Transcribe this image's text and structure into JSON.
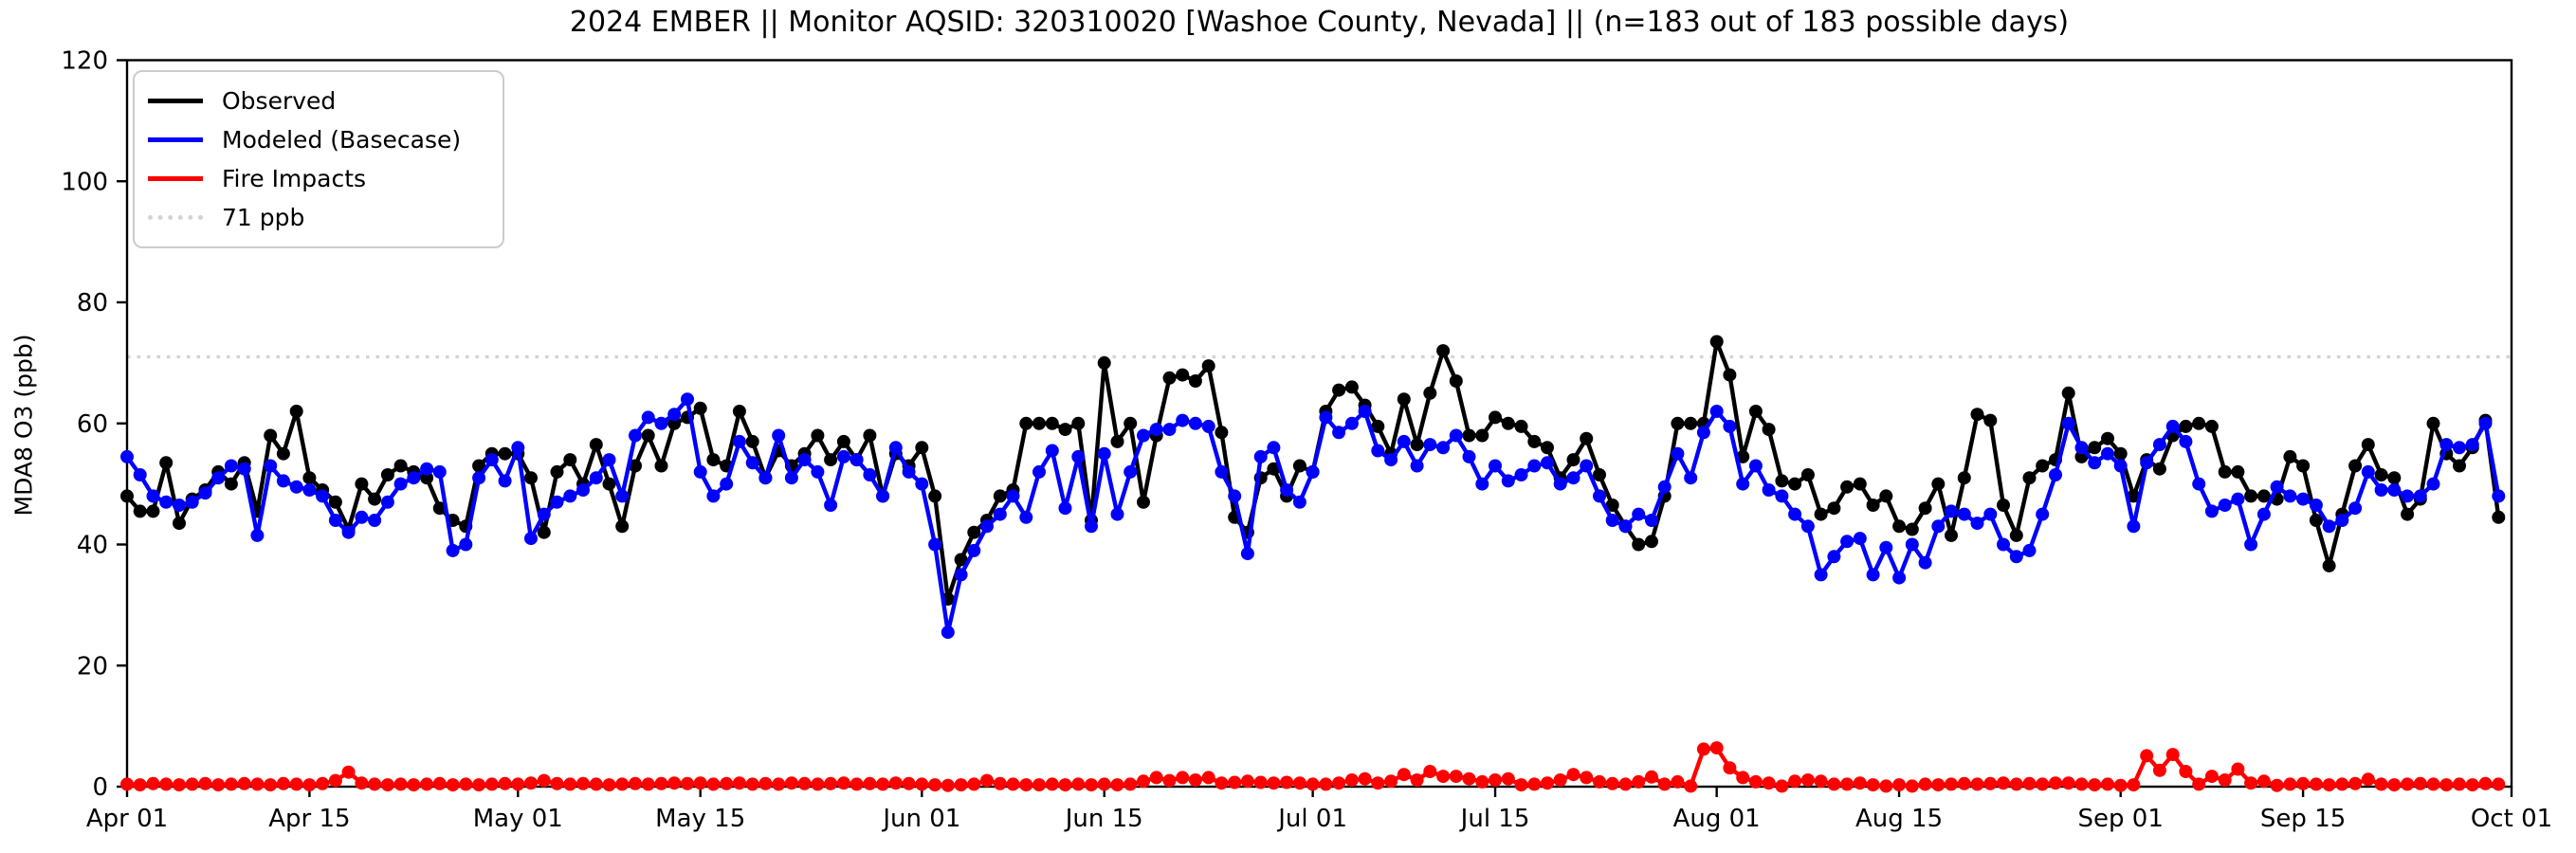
{
  "chart_data": {
    "type": "line",
    "title": "2024 EMBER || Monitor AQSID: 320310020 [Washoe County, Nevada] || (n=183 out of 183 possible days)",
    "ylabel": "MDA8 O3 (ppb)",
    "ylim": [
      0,
      120
    ],
    "yticks": [
      0,
      20,
      40,
      60,
      80,
      100,
      120
    ],
    "n_days": 183,
    "x_range_labels": [
      "Apr 01",
      "Oct 01"
    ],
    "xtick_labels": [
      "Apr 01",
      "Apr 15",
      "May 01",
      "May 15",
      "Jun 01",
      "Jun 15",
      "Jul 01",
      "Jul 15",
      "Aug 01",
      "Aug 15",
      "Sep 01",
      "Sep 15",
      "Oct 01"
    ],
    "xtick_days": [
      0,
      14,
      30,
      44,
      61,
      75,
      91,
      105,
      122,
      136,
      153,
      167,
      183
    ],
    "grid": false,
    "legend_position": "upper left",
    "threshold": {
      "value": 71,
      "label": "71 ppb",
      "color": "#d3d3d3"
    },
    "series": [
      {
        "name": "Observed",
        "color": "#000000",
        "values": [
          48,
          45.5,
          45.5,
          53.5,
          43.5,
          47.5,
          49,
          52,
          50,
          53.5,
          45.5,
          58,
          55,
          62,
          51,
          49,
          47,
          42.5,
          50,
          47.5,
          51.5,
          53,
          52,
          51,
          46,
          44,
          43,
          53,
          55,
          55,
          55,
          51,
          42,
          52,
          54,
          50,
          56.5,
          50,
          43,
          53,
          58,
          53,
          60,
          61,
          62.5,
          54,
          53,
          62,
          57,
          51,
          55.5,
          53,
          55,
          58,
          54,
          57,
          54,
          58,
          48,
          55,
          53,
          56,
          48,
          31,
          37.5,
          42,
          44,
          48,
          49,
          60,
          60,
          60,
          59,
          60,
          44,
          70,
          57,
          60,
          47,
          58,
          67.5,
          68,
          67,
          69.5,
          58.5,
          44.5,
          42,
          51,
          52.5,
          48,
          53,
          52,
          62,
          65.5,
          66,
          63,
          59.5,
          55,
          64,
          56.5,
          65,
          72,
          67,
          58,
          58,
          61,
          60,
          59.5,
          57,
          56,
          51,
          54,
          57.5,
          51.5,
          46.5,
          43,
          40,
          40.5,
          48,
          60,
          60,
          60,
          73.5,
          68,
          54.5,
          62,
          59,
          50.5,
          50,
          51.5,
          45,
          46,
          49.5,
          50,
          46.5,
          48,
          43,
          42.5,
          46,
          50,
          41.5,
          51,
          61.5,
          60.5,
          46.5,
          41.5,
          51,
          53,
          54,
          65,
          54.5,
          56,
          57.5,
          55,
          48,
          54,
          52.5,
          58,
          59.5,
          60,
          59.5,
          52,
          52,
          48,
          48,
          47.5,
          54.5,
          53,
          44,
          36.5,
          45,
          53,
          56.5,
          51.5,
          51,
          45,
          47.5,
          60,
          55,
          53,
          56,
          60.5,
          44.5
        ]
      },
      {
        "name": "Modeled (Basecase)",
        "color": "#0000ff",
        "values": [
          54.5,
          51.5,
          48,
          47,
          46.5,
          47,
          48.5,
          51,
          53,
          52.5,
          41.5,
          53,
          50.5,
          49.5,
          49,
          48,
          44,
          42,
          44.5,
          44,
          47,
          50,
          51,
          52.5,
          52,
          39,
          40,
          51,
          54,
          50.5,
          56,
          41,
          45,
          47,
          48,
          49,
          51,
          54,
          48,
          58,
          61,
          60,
          61.5,
          64,
          52,
          48,
          50,
          57,
          53.5,
          51,
          58,
          51,
          54,
          52,
          46.5,
          54.5,
          54,
          51.5,
          48,
          56,
          52,
          50,
          40,
          25.5,
          35,
          39,
          43,
          45,
          48,
          44.5,
          52,
          55.5,
          46,
          54.5,
          43,
          55,
          45,
          52,
          58,
          59,
          59,
          60.5,
          60,
          59.5,
          52,
          48,
          38.5,
          54.5,
          56,
          49,
          47,
          52,
          61,
          58.5,
          60,
          62,
          55.5,
          54,
          57,
          53,
          56.5,
          56,
          58,
          54.5,
          50,
          53,
          50.5,
          51.5,
          53,
          53.5,
          50,
          51,
          53,
          48,
          44,
          43,
          45,
          44,
          49.5,
          55,
          51,
          58.5,
          62,
          59.5,
          50,
          53,
          49,
          48,
          45,
          43,
          35,
          38,
          40.5,
          41,
          35,
          39.5,
          34.5,
          40,
          37,
          43,
          45.5,
          45,
          43.5,
          45,
          40,
          38,
          39,
          45,
          51.5,
          60,
          56,
          53.5,
          55,
          53,
          43,
          53.5,
          56.5,
          59.5,
          57,
          50,
          45.5,
          46.5,
          47.5,
          40,
          45,
          49.5,
          48,
          47.5,
          46.5,
          43,
          44,
          46,
          52,
          49,
          49,
          48,
          48,
          50,
          56.5,
          56,
          56.5,
          60,
          48
        ]
      },
      {
        "name": "Fire Impacts",
        "color": "#ff0000",
        "values": [
          0.4,
          0.3,
          0.5,
          0.4,
          0.3,
          0.4,
          0.5,
          0.3,
          0.4,
          0.5,
          0.4,
          0.3,
          0.5,
          0.4,
          0.3,
          0.5,
          1.0,
          2.4,
          0.6,
          0.4,
          0.3,
          0.4,
          0.3,
          0.4,
          0.5,
          0.3,
          0.4,
          0.3,
          0.4,
          0.5,
          0.4,
          0.6,
          1.0,
          0.5,
          0.4,
          0.5,
          0.4,
          0.3,
          0.4,
          0.5,
          0.4,
          0.5,
          0.6,
          0.5,
          0.6,
          0.4,
          0.5,
          0.6,
          0.4,
          0.5,
          0.4,
          0.6,
          0.5,
          0.4,
          0.5,
          0.6,
          0.4,
          0.5,
          0.4,
          0.6,
          0.5,
          0.4,
          0.3,
          0.2,
          0.3,
          0.4,
          1.0,
          0.5,
          0.4,
          0.3,
          0.3,
          0.4,
          0.3,
          0.4,
          0.3,
          0.4,
          0.3,
          0.4,
          0.9,
          1.5,
          1.0,
          1.5,
          1.1,
          1.5,
          0.6,
          0.7,
          0.9,
          0.7,
          0.6,
          0.7,
          0.6,
          0.4,
          0.4,
          0.6,
          1.1,
          1.3,
          0.6,
          0.9,
          2.0,
          1.1,
          2.5,
          1.7,
          1.7,
          1.3,
          0.8,
          1.1,
          1.3,
          0.3,
          0.4,
          0.6,
          1.1,
          2.0,
          1.5,
          0.8,
          0.5,
          0.4,
          0.8,
          1.6,
          0.4,
          0.8,
          0.1,
          6.2,
          6.4,
          3.1,
          1.5,
          0.8,
          0.6,
          0.1,
          0.9,
          1.1,
          0.9,
          0.4,
          0.4,
          0.6,
          0.3,
          0.1,
          0.3,
          0.1,
          0.4,
          0.3,
          0.4,
          0.5,
          0.4,
          0.5,
          0.6,
          0.4,
          0.5,
          0.4,
          0.6,
          0.6,
          0.4,
          0.3,
          0.4,
          0.2,
          0.3,
          5.1,
          2.7,
          5.3,
          2.5,
          0.4,
          1.7,
          1.1,
          2.9,
          0.6,
          0.9,
          0.2,
          0.4,
          0.5,
          0.4,
          0.3,
          0.4,
          0.5,
          1.2,
          0.4,
          0.3,
          0.4,
          0.5,
          0.4,
          0.3,
          0.4,
          0.3,
          0.5,
          0.4
        ]
      }
    ]
  }
}
